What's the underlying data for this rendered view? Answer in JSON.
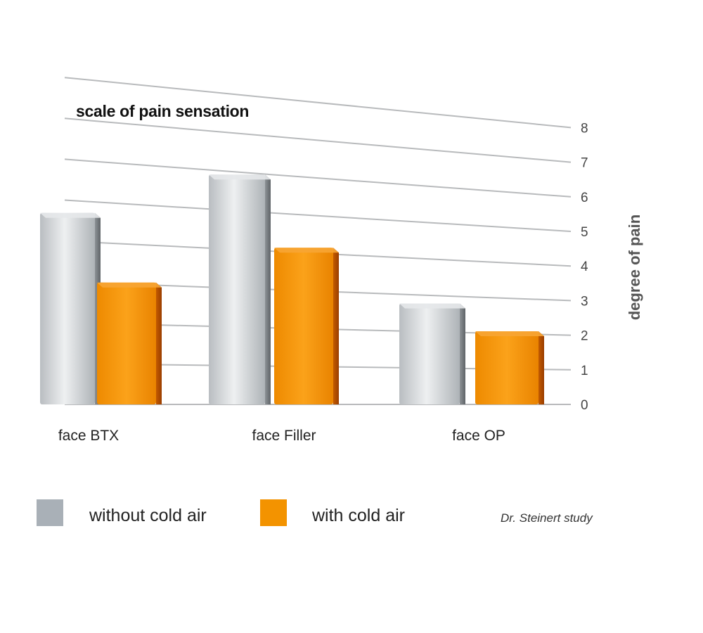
{
  "chart_data": {
    "type": "bar",
    "title": "scale of pain sensation",
    "xlabel": "",
    "ylabel": "degree of pain",
    "ylim": [
      0,
      8
    ],
    "yticks": [
      0,
      1,
      2,
      3,
      4,
      5,
      6,
      7,
      8
    ],
    "categories": [
      "face BTX",
      "face Filler",
      "face OP"
    ],
    "series": [
      {
        "name": "without cold air",
        "values": [
          5.5,
          6.6,
          2.9
        ]
      },
      {
        "name": "with cold air",
        "values": [
          3.5,
          4.5,
          2.1
        ]
      }
    ],
    "grid": true,
    "legend_position": "bottom",
    "colors": {
      "without": "#c4c8cc",
      "with": "#f39300"
    }
  },
  "source": "Dr. Steinert study"
}
